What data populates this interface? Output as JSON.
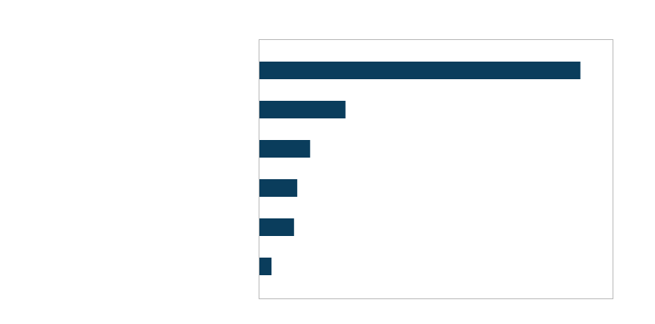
{
  "chart_data": {
    "type": "bar",
    "orientation": "horizontal",
    "categories": [
      null,
      null,
      null,
      null,
      null,
      null
    ],
    "values": [
      100,
      27,
      16,
      12,
      11,
      4
    ],
    "color": "#0a3d5c",
    "xlim": [
      0,
      110
    ],
    "tick_labels": false,
    "grid": false
  }
}
